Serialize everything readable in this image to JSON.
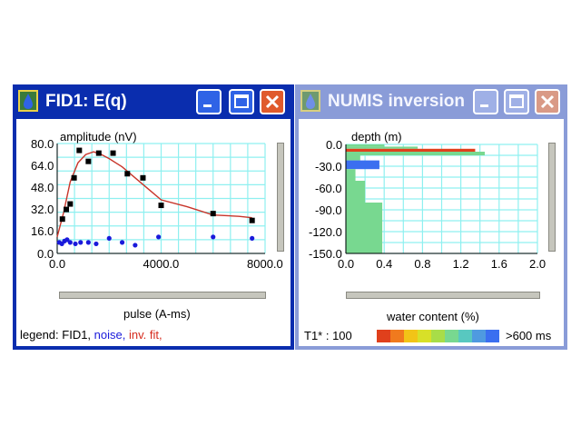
{
  "colors": {
    "titlebar_active": "#0a2dae",
    "titlebar_inactive": "#8a9cd8",
    "grid": "#8ff0f0",
    "data_point": "#000000",
    "noise": "#1a1adb",
    "fit": "#c8352a"
  },
  "window1": {
    "title": "FID1: E(q)",
    "icon": "water-drop-icon",
    "buttons": {
      "minimize": "minimize-icon",
      "maximize": "maximize-icon",
      "close": "close-icon"
    },
    "legend": {
      "prefix": "legend: FID1, ",
      "noise": "noise,",
      "fit": " inv. fit,"
    }
  },
  "window2": {
    "title": "NUMIS inversion",
    "icon": "water-drop-icon",
    "buttons": {
      "minimize": "minimize-icon",
      "maximize": "maximize-icon",
      "close": "close-icon"
    },
    "t1_label": "T1* : 100",
    "t1_max_label": ">600 ms",
    "t1_colors": [
      "#e0401c",
      "#f07a1e",
      "#f2c417",
      "#d8e028",
      "#a8dd48",
      "#78d890",
      "#58c8c0",
      "#4f9ae0",
      "#3b6ff0"
    ]
  },
  "chart_data": [
    {
      "type": "scatter",
      "ylabel": "amplitude (nV)",
      "xlabel": "pulse (A-ms)",
      "xlim": [
        0,
        8000
      ],
      "ylim": [
        0,
        80
      ],
      "x_ticks": [
        "0.0",
        "4000.0",
        "8000.0"
      ],
      "x_tick_values": [
        0,
        4000,
        8000
      ],
      "y_ticks": [
        "80.0",
        "64.0",
        "48.0",
        "32.0",
        "16.0",
        "0.0"
      ],
      "y_tick_values": [
        80,
        64,
        48,
        32,
        16,
        0
      ],
      "grid": true,
      "series": [
        {
          "name": "FID1",
          "kind": "points",
          "x": [
            200,
            350,
            500,
            650,
            850,
            1200,
            1600,
            2150,
            2700,
            3300,
            4000,
            6000,
            7500
          ],
          "y": [
            25,
            32,
            36,
            55,
            75,
            67,
            73,
            73,
            58,
            55,
            35,
            29,
            24
          ]
        },
        {
          "name": "noise",
          "kind": "points",
          "x": [
            80,
            180,
            280,
            380,
            500,
            700,
            900,
            1200,
            1500,
            2000,
            2500,
            3000,
            3900,
            6000,
            7500
          ],
          "y": [
            8,
            7,
            9,
            10,
            8,
            7,
            8,
            8,
            7,
            11,
            8,
            6,
            12,
            12,
            11
          ]
        },
        {
          "name": "inv. fit",
          "kind": "line",
          "x": [
            0,
            250,
            500,
            800,
            1100,
            1400,
            1700,
            2000,
            2500,
            3000,
            3500,
            4000,
            5000,
            6000,
            7000,
            7500
          ],
          "y": [
            12,
            30,
            52,
            66,
            72,
            74,
            72,
            69,
            63,
            55,
            47,
            39,
            34,
            28,
            27,
            26
          ]
        }
      ]
    },
    {
      "type": "bar",
      "orientation": "horizontal",
      "ylabel": "depth (m)",
      "xlabel": "water content (%)",
      "xlim": [
        0,
        2.0
      ],
      "ylim": [
        -150,
        0
      ],
      "x_ticks": [
        "0.0",
        "0.4",
        "0.8",
        "1.2",
        "1.6",
        "2.0"
      ],
      "x_tick_values": [
        0,
        0.4,
        0.8,
        1.2,
        1.6,
        2.0
      ],
      "y_ticks": [
        "0.0",
        "-30.0",
        "-60.0",
        "-90.0",
        "-120.0",
        "-150.0"
      ],
      "y_tick_values": [
        0,
        -30,
        -60,
        -90,
        -120,
        -150
      ],
      "grid": true,
      "bars": [
        {
          "top": 0,
          "bottom": -3,
          "value": 0.4,
          "color": "#78d890"
        },
        {
          "top": -3,
          "bottom": -6,
          "value": 0.75,
          "color": "#78d890"
        },
        {
          "top": -6,
          "bottom": -10,
          "value": 1.35,
          "color": "#e0401c"
        },
        {
          "top": -10,
          "bottom": -15,
          "value": 1.45,
          "color": "#78d890"
        },
        {
          "top": -15,
          "bottom": -22,
          "value": 0.15,
          "color": "#78d890"
        },
        {
          "top": -22,
          "bottom": -34,
          "value": 0.35,
          "color": "#3b6ff0"
        },
        {
          "top": -34,
          "bottom": -50,
          "value": 0.1,
          "color": "#78d890"
        },
        {
          "top": -50,
          "bottom": -80,
          "value": 0.2,
          "color": "#78d890"
        },
        {
          "top": -80,
          "bottom": -150,
          "value": 0.38,
          "color": "#78d890"
        }
      ]
    }
  ]
}
